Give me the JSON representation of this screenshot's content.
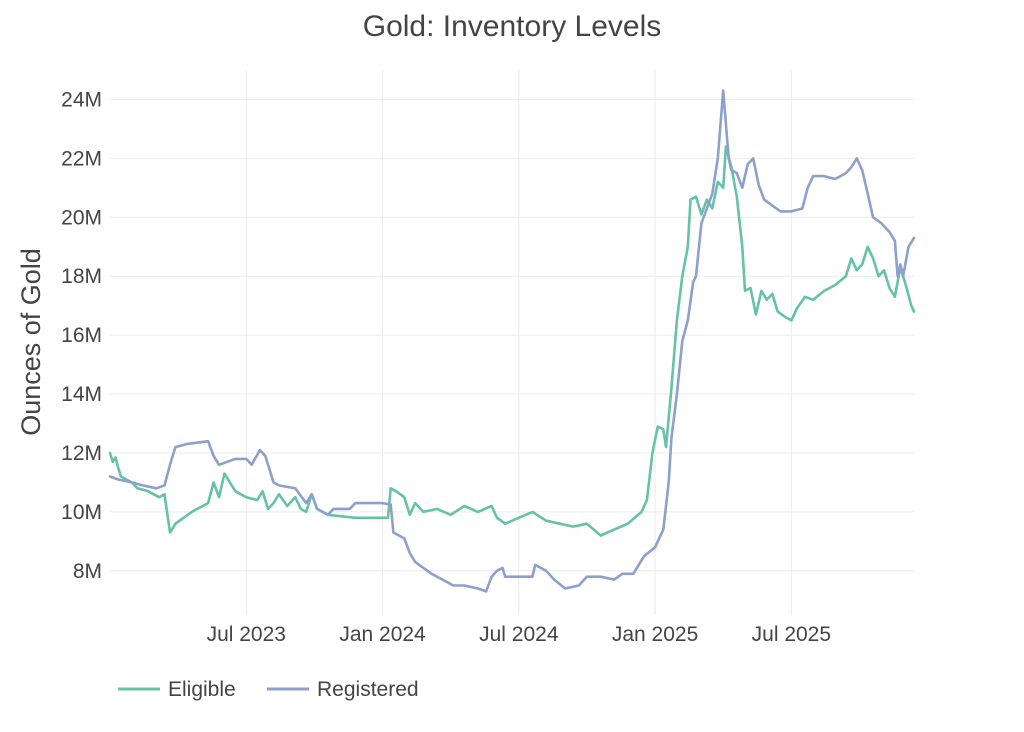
{
  "chart_data": {
    "type": "line",
    "title": "Gold: Inventory Levels",
    "xlabel": "",
    "ylabel": "Ounces of Gold",
    "x_range": [
      2023.0,
      2025.95
    ],
    "ylim": [
      6.5,
      25
    ],
    "x_ticks": [
      {
        "value": 2023.5,
        "label": "Jul 2023"
      },
      {
        "value": 2024.0,
        "label": "Jan 2024"
      },
      {
        "value": 2024.5,
        "label": "Jul 2024"
      },
      {
        "value": 2025.0,
        "label": "Jan 2025"
      },
      {
        "value": 2025.5,
        "label": "Jul 2025"
      }
    ],
    "y_ticks": [
      {
        "value": 8,
        "label": "8M"
      },
      {
        "value": 10,
        "label": "10M"
      },
      {
        "value": 12,
        "label": "12M"
      },
      {
        "value": 14,
        "label": "14M"
      },
      {
        "value": 16,
        "label": "16M"
      },
      {
        "value": 18,
        "label": "18M"
      },
      {
        "value": 20,
        "label": "20M"
      },
      {
        "value": 22,
        "label": "22M"
      },
      {
        "value": 24,
        "label": "24M"
      }
    ],
    "grid": true,
    "legend_position": "bottom-left",
    "series": [
      {
        "name": "Eligible",
        "color": "#66c2a5",
        "points": [
          [
            2023.0,
            12.0
          ],
          [
            2023.01,
            11.7
          ],
          [
            2023.02,
            11.85
          ],
          [
            2023.03,
            11.5
          ],
          [
            2023.04,
            11.2
          ],
          [
            2023.08,
            11.0
          ],
          [
            2023.1,
            10.8
          ],
          [
            2023.14,
            10.7
          ],
          [
            2023.18,
            10.5
          ],
          [
            2023.2,
            10.6
          ],
          [
            2023.22,
            9.3
          ],
          [
            2023.24,
            9.6
          ],
          [
            2023.27,
            9.8
          ],
          [
            2023.3,
            10.0
          ],
          [
            2023.34,
            10.2
          ],
          [
            2023.36,
            10.3
          ],
          [
            2023.38,
            11.0
          ],
          [
            2023.4,
            10.5
          ],
          [
            2023.42,
            11.3
          ],
          [
            2023.44,
            11.0
          ],
          [
            2023.46,
            10.7
          ],
          [
            2023.5,
            10.5
          ],
          [
            2023.54,
            10.4
          ],
          [
            2023.56,
            10.7
          ],
          [
            2023.58,
            10.1
          ],
          [
            2023.6,
            10.3
          ],
          [
            2023.62,
            10.6
          ],
          [
            2023.65,
            10.2
          ],
          [
            2023.68,
            10.5
          ],
          [
            2023.7,
            10.1
          ],
          [
            2023.72,
            10.0
          ],
          [
            2023.74,
            10.6
          ],
          [
            2023.76,
            10.1
          ],
          [
            2023.8,
            9.9
          ],
          [
            2023.85,
            9.85
          ],
          [
            2023.9,
            9.8
          ],
          [
            2023.95,
            9.8
          ],
          [
            2024.02,
            9.8
          ],
          [
            2024.03,
            10.8
          ],
          [
            2024.05,
            10.7
          ],
          [
            2024.08,
            10.5
          ],
          [
            2024.1,
            9.9
          ],
          [
            2024.12,
            10.3
          ],
          [
            2024.15,
            10.0
          ],
          [
            2024.2,
            10.1
          ],
          [
            2024.25,
            9.9
          ],
          [
            2024.3,
            10.2
          ],
          [
            2024.35,
            10.0
          ],
          [
            2024.4,
            10.2
          ],
          [
            2024.42,
            9.8
          ],
          [
            2024.45,
            9.6
          ],
          [
            2024.5,
            9.8
          ],
          [
            2024.55,
            10.0
          ],
          [
            2024.6,
            9.7
          ],
          [
            2024.65,
            9.6
          ],
          [
            2024.7,
            9.5
          ],
          [
            2024.75,
            9.6
          ],
          [
            2024.8,
            9.2
          ],
          [
            2024.85,
            9.4
          ],
          [
            2024.9,
            9.6
          ],
          [
            2024.95,
            10.0
          ],
          [
            2024.97,
            10.4
          ],
          [
            2024.99,
            12.0
          ],
          [
            2025.01,
            12.9
          ],
          [
            2025.03,
            12.8
          ],
          [
            2025.04,
            12.2
          ],
          [
            2025.06,
            14.2
          ],
          [
            2025.08,
            16.5
          ],
          [
            2025.1,
            18.0
          ],
          [
            2025.12,
            19.0
          ],
          [
            2025.13,
            20.6
          ],
          [
            2025.15,
            20.7
          ],
          [
            2025.17,
            20.1
          ],
          [
            2025.19,
            20.6
          ],
          [
            2025.21,
            20.3
          ],
          [
            2025.23,
            21.2
          ],
          [
            2025.25,
            21.0
          ],
          [
            2025.26,
            22.4
          ],
          [
            2025.28,
            21.7
          ],
          [
            2025.3,
            20.7
          ],
          [
            2025.32,
            19.0
          ],
          [
            2025.33,
            17.5
          ],
          [
            2025.35,
            17.6
          ],
          [
            2025.37,
            16.7
          ],
          [
            2025.39,
            17.5
          ],
          [
            2025.41,
            17.2
          ],
          [
            2025.43,
            17.4
          ],
          [
            2025.45,
            16.8
          ],
          [
            2025.48,
            16.6
          ],
          [
            2025.5,
            16.5
          ],
          [
            2025.52,
            16.9
          ],
          [
            2025.55,
            17.3
          ],
          [
            2025.58,
            17.2
          ],
          [
            2025.62,
            17.5
          ],
          [
            2025.66,
            17.7
          ],
          [
            2025.7,
            18.0
          ],
          [
            2025.72,
            18.6
          ],
          [
            2025.74,
            18.2
          ],
          [
            2025.76,
            18.4
          ],
          [
            2025.78,
            19.0
          ],
          [
            2025.8,
            18.6
          ],
          [
            2025.82,
            18.0
          ],
          [
            2025.84,
            18.2
          ],
          [
            2025.86,
            17.6
          ],
          [
            2025.88,
            17.3
          ],
          [
            2025.9,
            18.3
          ],
          [
            2025.92,
            17.7
          ],
          [
            2025.94,
            17.0
          ],
          [
            2025.95,
            16.8
          ]
        ]
      },
      {
        "name": "Registered",
        "color": "#8da0cb",
        "points": [
          [
            2023.0,
            11.2
          ],
          [
            2023.03,
            11.1
          ],
          [
            2023.08,
            11.0
          ],
          [
            2023.12,
            10.9
          ],
          [
            2023.17,
            10.8
          ],
          [
            2023.2,
            10.9
          ],
          [
            2023.22,
            11.6
          ],
          [
            2023.24,
            12.2
          ],
          [
            2023.28,
            12.3
          ],
          [
            2023.32,
            12.35
          ],
          [
            2023.36,
            12.4
          ],
          [
            2023.38,
            11.9
          ],
          [
            2023.4,
            11.6
          ],
          [
            2023.43,
            11.7
          ],
          [
            2023.46,
            11.8
          ],
          [
            2023.5,
            11.8
          ],
          [
            2023.52,
            11.6
          ],
          [
            2023.55,
            12.1
          ],
          [
            2023.57,
            11.9
          ],
          [
            2023.6,
            11.0
          ],
          [
            2023.62,
            10.9
          ],
          [
            2023.68,
            10.8
          ],
          [
            2023.72,
            10.3
          ],
          [
            2023.74,
            10.6
          ],
          [
            2023.76,
            10.1
          ],
          [
            2023.8,
            9.9
          ],
          [
            2023.82,
            10.1
          ],
          [
            2023.88,
            10.1
          ],
          [
            2023.9,
            10.3
          ],
          [
            2024.0,
            10.3
          ],
          [
            2024.03,
            10.25
          ],
          [
            2024.04,
            9.3
          ],
          [
            2024.08,
            9.1
          ],
          [
            2024.1,
            8.6
          ],
          [
            2024.12,
            8.3
          ],
          [
            2024.15,
            8.1
          ],
          [
            2024.18,
            7.9
          ],
          [
            2024.22,
            7.7
          ],
          [
            2024.26,
            7.5
          ],
          [
            2024.3,
            7.5
          ],
          [
            2024.35,
            7.4
          ],
          [
            2024.38,
            7.3
          ],
          [
            2024.4,
            7.8
          ],
          [
            2024.42,
            8.0
          ],
          [
            2024.44,
            8.1
          ],
          [
            2024.45,
            7.8
          ],
          [
            2024.5,
            7.8
          ],
          [
            2024.55,
            7.8
          ],
          [
            2024.56,
            8.2
          ],
          [
            2024.6,
            8.0
          ],
          [
            2024.63,
            7.7
          ],
          [
            2024.67,
            7.4
          ],
          [
            2024.72,
            7.5
          ],
          [
            2024.75,
            7.8
          ],
          [
            2024.8,
            7.8
          ],
          [
            2024.85,
            7.7
          ],
          [
            2024.88,
            7.9
          ],
          [
            2024.92,
            7.9
          ],
          [
            2024.96,
            8.5
          ],
          [
            2025.0,
            8.8
          ],
          [
            2025.03,
            9.4
          ],
          [
            2025.05,
            11.0
          ],
          [
            2025.06,
            12.5
          ],
          [
            2025.08,
            14.0
          ],
          [
            2025.1,
            15.8
          ],
          [
            2025.12,
            16.5
          ],
          [
            2025.14,
            17.8
          ],
          [
            2025.15,
            18.0
          ],
          [
            2025.17,
            19.8
          ],
          [
            2025.19,
            20.3
          ],
          [
            2025.21,
            20.8
          ],
          [
            2025.23,
            22.0
          ],
          [
            2025.25,
            24.3
          ],
          [
            2025.27,
            22.0
          ],
          [
            2025.28,
            21.6
          ],
          [
            2025.3,
            21.5
          ],
          [
            2025.32,
            21.0
          ],
          [
            2025.34,
            21.8
          ],
          [
            2025.36,
            22.0
          ],
          [
            2025.38,
            21.1
          ],
          [
            2025.4,
            20.6
          ],
          [
            2025.43,
            20.4
          ],
          [
            2025.46,
            20.2
          ],
          [
            2025.5,
            20.2
          ],
          [
            2025.54,
            20.3
          ],
          [
            2025.56,
            21.0
          ],
          [
            2025.58,
            21.4
          ],
          [
            2025.62,
            21.4
          ],
          [
            2025.66,
            21.3
          ],
          [
            2025.68,
            21.4
          ],
          [
            2025.7,
            21.5
          ],
          [
            2025.72,
            21.7
          ],
          [
            2025.74,
            22.0
          ],
          [
            2025.76,
            21.6
          ],
          [
            2025.78,
            20.8
          ],
          [
            2025.8,
            20.0
          ],
          [
            2025.83,
            19.8
          ],
          [
            2025.86,
            19.5
          ],
          [
            2025.88,
            19.2
          ],
          [
            2025.89,
            18.0
          ],
          [
            2025.9,
            18.4
          ],
          [
            2025.91,
            18.0
          ],
          [
            2025.93,
            19.0
          ],
          [
            2025.95,
            19.3
          ]
        ]
      }
    ]
  }
}
